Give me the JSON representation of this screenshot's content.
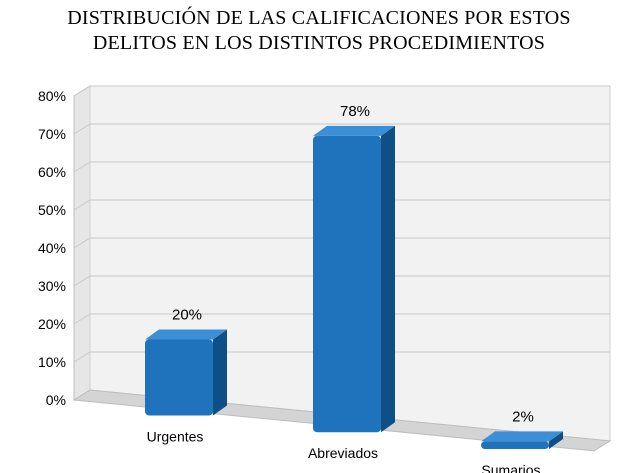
{
  "chart_data": {
    "type": "bar",
    "title_lines": [
      "DISTRIBUCIÓN DE LAS CALIFICACIONES POR ESTOS",
      "DELITOS EN  LOS DISTINTOS PROCEDIMIENTOS"
    ],
    "categories": [
      "Urgentes",
      "Abreviados",
      "Sumarios"
    ],
    "values": [
      20,
      78,
      2
    ],
    "data_labels": [
      "20%",
      "78%",
      "2%"
    ],
    "ylim": [
      0,
      80
    ],
    "yticks": [
      "0%",
      "10%",
      "20%",
      "30%",
      "40%",
      "50%",
      "60%",
      "70%",
      "80%"
    ],
    "grid": true,
    "legend": "none",
    "colors": {
      "bar_front": "#1f73bd",
      "bar_top": "#3b8fd6",
      "bar_side": "#0f4f87",
      "wall": "#f2f2f2",
      "floor": "#d4d4d4",
      "grid": "#c8c8c8"
    }
  }
}
